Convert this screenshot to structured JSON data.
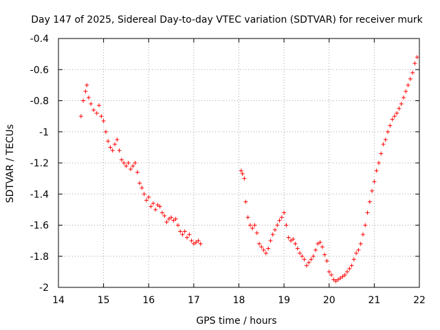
{
  "chart_data": {
    "type": "scatter",
    "title": "Day 147 of 2025, Sidereal Day-to-day VTEC variation (SDTVAR) for receiver murk",
    "xlabel": "GPS time / hours",
    "ylabel": "SDTVAR / TECUs",
    "xlim": [
      14,
      22
    ],
    "ylim": [
      -2,
      -0.4
    ],
    "xticks": [
      14,
      15,
      16,
      17,
      18,
      19,
      20,
      21,
      22
    ],
    "xtick_labels": [
      "14",
      "15",
      "16",
      "17",
      "18",
      "19",
      "20",
      "21",
      "22"
    ],
    "yticks": [
      -2,
      -1.8,
      -1.6,
      -1.4,
      -1.2,
      -1,
      -0.8,
      -0.6,
      -0.4
    ],
    "ytick_labels": [
      "-2",
      "-1.8",
      "-1.6",
      "-1.4",
      "-1.2",
      "-1",
      "-0.8",
      "-0.6",
      "-0.4"
    ],
    "grid": true,
    "marker": "+",
    "marker_color": "#ff0000",
    "series": [
      {
        "name": "SDTVAR",
        "x": [
          14.5,
          14.55,
          14.6,
          14.63,
          14.67,
          14.72,
          14.78,
          14.85,
          14.9,
          14.95,
          15.0,
          15.05,
          15.1,
          15.15,
          15.2,
          15.25,
          15.3,
          15.35,
          15.4,
          15.45,
          15.5,
          15.55,
          15.6,
          15.65,
          15.7,
          15.75,
          15.8,
          15.85,
          15.9,
          15.95,
          16.0,
          16.05,
          16.1,
          16.15,
          16.2,
          16.25,
          16.3,
          16.35,
          16.4,
          16.45,
          16.5,
          16.55,
          16.6,
          16.65,
          16.7,
          16.75,
          16.8,
          16.85,
          16.9,
          16.95,
          17.0,
          17.05,
          17.1,
          17.15,
          18.05,
          18.08,
          18.12,
          18.15,
          18.2,
          18.25,
          18.3,
          18.35,
          18.4,
          18.45,
          18.5,
          18.55,
          18.6,
          18.65,
          18.7,
          18.75,
          18.8,
          18.85,
          18.9,
          18.95,
          19.0,
          19.05,
          19.1,
          19.15,
          19.2,
          19.25,
          19.3,
          19.35,
          19.4,
          19.45,
          19.5,
          19.55,
          19.6,
          19.65,
          19.7,
          19.75,
          19.8,
          19.85,
          19.9,
          19.95,
          20.0,
          20.05,
          20.1,
          20.15,
          20.2,
          20.25,
          20.3,
          20.35,
          20.4,
          20.45,
          20.5,
          20.55,
          20.6,
          20.65,
          20.7,
          20.75,
          20.8,
          20.85,
          20.9,
          20.95,
          21.0,
          21.05,
          21.1,
          21.15,
          21.2,
          21.25,
          21.3,
          21.35,
          21.4,
          21.45,
          21.5,
          21.55,
          21.6,
          21.65,
          21.7,
          21.75,
          21.8,
          21.85,
          21.9,
          21.95
        ],
        "y": [
          -0.9,
          -0.8,
          -0.74,
          -0.7,
          -0.78,
          -0.82,
          -0.86,
          -0.88,
          -0.83,
          -0.9,
          -0.93,
          -1.0,
          -1.06,
          -1.1,
          -1.12,
          -1.08,
          -1.05,
          -1.12,
          -1.18,
          -1.2,
          -1.22,
          -1.2,
          -1.24,
          -1.22,
          -1.2,
          -1.26,
          -1.33,
          -1.36,
          -1.4,
          -1.44,
          -1.42,
          -1.48,
          -1.46,
          -1.5,
          -1.47,
          -1.48,
          -1.52,
          -1.54,
          -1.58,
          -1.56,
          -1.55,
          -1.57,
          -1.56,
          -1.6,
          -1.64,
          -1.66,
          -1.64,
          -1.68,
          -1.66,
          -1.7,
          -1.72,
          -1.71,
          -1.7,
          -1.72,
          -1.25,
          -1.27,
          -1.3,
          -1.45,
          -1.55,
          -1.6,
          -1.62,
          -1.6,
          -1.65,
          -1.72,
          -1.74,
          -1.76,
          -1.78,
          -1.75,
          -1.7,
          -1.66,
          -1.63,
          -1.6,
          -1.57,
          -1.55,
          -1.52,
          -1.6,
          -1.68,
          -1.7,
          -1.69,
          -1.72,
          -1.75,
          -1.78,
          -1.8,
          -1.82,
          -1.86,
          -1.84,
          -1.82,
          -1.8,
          -1.76,
          -1.72,
          -1.71,
          -1.74,
          -1.79,
          -1.83,
          -1.9,
          -1.92,
          -1.95,
          -1.96,
          -1.95,
          -1.94,
          -1.93,
          -1.92,
          -1.9,
          -1.88,
          -1.86,
          -1.82,
          -1.78,
          -1.76,
          -1.72,
          -1.66,
          -1.6,
          -1.52,
          -1.45,
          -1.38,
          -1.32,
          -1.25,
          -1.2,
          -1.14,
          -1.08,
          -1.05,
          -1.0,
          -0.96,
          -0.92,
          -0.9,
          -0.88,
          -0.85,
          -0.82,
          -0.78,
          -0.74,
          -0.7,
          -0.66,
          -0.62,
          -0.56,
          -0.52
        ]
      }
    ]
  }
}
